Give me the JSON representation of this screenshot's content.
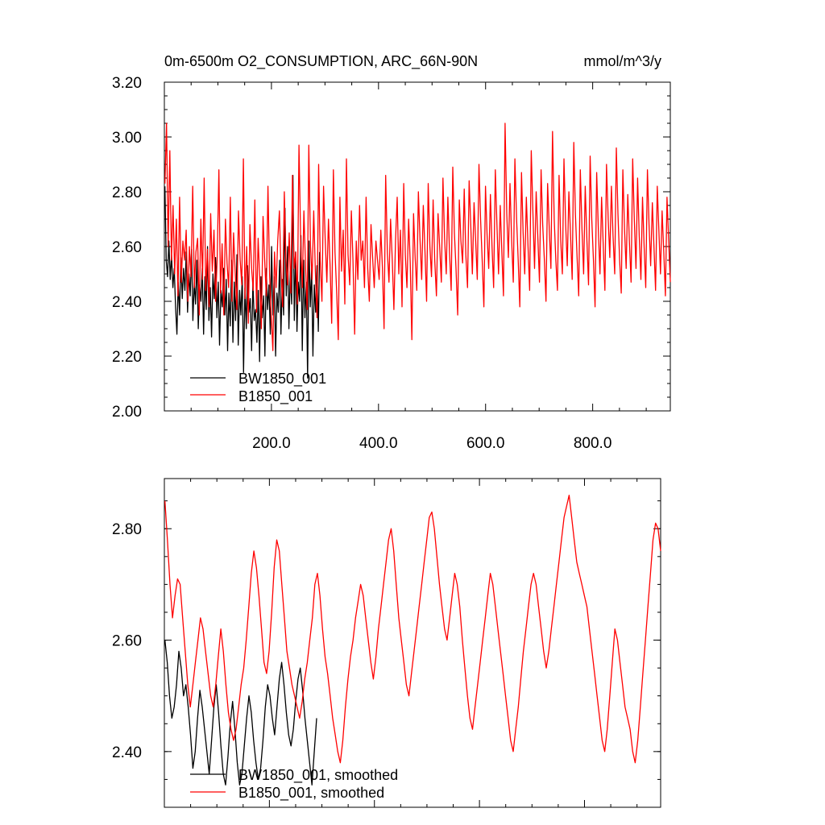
{
  "chart_data": [
    {
      "type": "line",
      "title": "0m-6500m O2_CONSUMPTION, ARC_66N-90N",
      "units": "mmol/m^3/y",
      "xlabel": "",
      "ylabel": "",
      "xlim": [
        0,
        945
      ],
      "ylim": [
        2.0,
        3.2
      ],
      "x_ticks": [
        200,
        400,
        600,
        800
      ],
      "x_tick_labels": [
        "200.0",
        "400.0",
        "600.0",
        "800.0"
      ],
      "y_ticks": [
        2.0,
        2.2,
        2.4,
        2.6,
        2.8,
        3.0,
        3.2
      ],
      "y_tick_labels": [
        "2.00",
        "2.20",
        "2.40",
        "2.60",
        "2.80",
        "3.00",
        "3.20"
      ],
      "legend_position": "bottom-left",
      "series": [
        {
          "name": "BW1850_001",
          "color": "#000000",
          "x_start": 1,
          "values": [
            2.82,
            2.55,
            2.49,
            2.62,
            2.48,
            2.57,
            2.45,
            2.52,
            2.38,
            2.28,
            2.47,
            2.35,
            2.56,
            2.41,
            2.52,
            2.44,
            2.58,
            2.36,
            2.5,
            2.42,
            2.59,
            2.33,
            2.47,
            2.39,
            2.55,
            2.3,
            2.46,
            2.4,
            2.52,
            2.28,
            2.49,
            2.37,
            2.6,
            2.33,
            2.45,
            2.27,
            2.5,
            2.41,
            2.56,
            2.34,
            2.47,
            2.24,
            2.44,
            2.38,
            2.52,
            2.35,
            2.48,
            2.22,
            2.43,
            2.31,
            2.55,
            2.25,
            2.47,
            2.33,
            2.57,
            2.24,
            2.44,
            2.35,
            2.49,
            2.14,
            2.45,
            2.3,
            2.53,
            2.36,
            2.41,
            2.22,
            2.47,
            2.33,
            2.37,
            2.25,
            2.44,
            2.18,
            2.49,
            2.34,
            2.42,
            2.2,
            2.52,
            2.37,
            2.46,
            2.28,
            2.6,
            2.35,
            2.49,
            2.2,
            2.43,
            2.36,
            2.55,
            2.28,
            2.48,
            2.35,
            2.74,
            2.42,
            2.6,
            2.3,
            2.51,
            2.39,
            2.86,
            2.33,
            2.58,
            2.29,
            2.47,
            2.4,
            2.64,
            2.22,
            2.55,
            2.34,
            2.47,
            2.12,
            2.62,
            2.38,
            2.52,
            2.2,
            2.46,
            2.36,
            2.53,
            2.29,
            2.58
          ]
        },
        {
          "name": "B1850_001",
          "color": "#ff0000",
          "x_start": 1,
          "values": [
            2.83,
            3.05,
            2.6,
            2.95,
            2.55,
            2.75,
            2.5,
            2.7,
            2.42,
            2.78,
            2.47,
            2.62,
            2.55,
            2.66,
            2.4,
            2.6,
            2.49,
            2.82,
            2.45,
            2.58,
            2.63,
            2.35,
            2.7,
            2.48,
            2.85,
            2.44,
            2.59,
            2.38,
            2.72,
            2.51,
            2.66,
            2.4,
            2.56,
            2.88,
            2.43,
            2.61,
            2.35,
            2.7,
            2.54,
            2.45,
            2.78,
            2.4,
            2.65,
            2.5,
            2.37,
            2.73,
            2.55,
            2.46,
            2.92,
            2.41,
            2.6,
            2.32,
            2.68,
            2.52,
            2.44,
            2.77,
            2.36,
            2.63,
            2.48,
            2.3,
            2.71,
            2.55,
            2.42,
            2.82,
            2.5,
            2.35,
            2.22,
            2.58,
            2.45,
            2.62,
            2.73,
            2.51,
            2.38,
            2.8,
            2.55,
            2.46,
            2.65,
            2.43,
            2.86,
            2.52,
            2.58,
            2.39,
            2.97,
            2.62,
            2.45,
            2.73,
            2.52,
            2.37,
            2.97,
            2.6,
            2.48,
            2.73,
            2.51,
            2.34,
            2.9,
            2.55,
            2.4,
            2.82,
            2.63,
            2.47,
            2.7,
            2.53,
            2.32,
            2.88,
            2.58,
            2.44,
            2.26,
            2.78,
            2.51,
            2.66,
            2.39,
            2.92,
            2.57,
            2.46,
            2.73,
            2.55,
            2.28,
            2.62,
            2.48,
            2.75,
            2.55,
            2.62,
            2.45,
            2.78,
            2.52,
            2.4,
            2.68,
            2.56,
            2.45,
            2.62,
            2.55,
            2.48,
            2.66,
            2.52,
            2.3,
            2.86,
            2.58,
            2.47,
            2.7,
            2.55,
            2.37,
            2.62,
            2.78,
            2.5,
            2.66,
            2.38,
            2.83,
            2.57,
            2.45,
            2.7,
            2.54,
            2.26,
            2.72,
            2.56,
            2.44,
            2.8,
            2.62,
            2.48,
            2.75,
            2.58,
            2.4,
            2.83,
            2.6,
            2.49,
            2.77,
            2.55,
            2.42,
            2.72,
            2.6,
            2.47,
            2.85,
            2.63,
            2.5,
            2.78,
            2.58,
            2.44,
            2.89,
            2.65,
            2.52,
            2.35,
            2.77,
            2.62,
            2.54,
            2.81,
            2.57,
            2.45,
            2.84,
            2.68,
            2.5,
            2.76,
            2.62,
            2.48,
            2.9,
            2.7,
            2.55,
            2.38,
            2.82,
            2.64,
            2.52,
            2.79,
            2.6,
            2.45,
            2.88,
            2.68,
            2.5,
            2.75,
            2.58,
            2.42,
            3.05,
            2.72,
            2.56,
            2.83,
            2.62,
            2.47,
            2.92,
            2.7,
            2.55,
            2.38,
            2.87,
            2.65,
            2.5,
            2.78,
            2.6,
            2.44,
            2.95,
            2.72,
            2.52,
            2.8,
            2.63,
            2.47,
            2.88,
            2.68,
            2.55,
            2.4,
            2.83,
            2.66,
            2.52,
            3.02,
            2.7,
            2.55,
            2.44,
            2.86,
            2.62,
            2.5,
            2.92,
            2.68,
            2.53,
            2.8,
            2.64,
            2.48,
            2.98,
            2.72,
            2.56,
            2.42,
            2.88,
            2.66,
            2.5,
            2.82,
            2.62,
            2.46,
            2.93,
            2.7,
            2.55,
            2.38,
            2.87,
            2.66,
            2.5,
            2.78,
            2.6,
            2.44,
            2.9,
            2.7,
            2.56,
            2.82,
            2.64,
            2.5,
            2.96,
            2.72,
            2.55,
            2.43,
            2.88,
            2.66,
            2.52,
            2.79,
            2.62,
            2.47,
            2.92,
            2.7,
            2.52,
            2.85,
            2.64,
            2.48,
            2.78,
            2.6,
            2.45,
            2.88,
            2.68,
            2.53,
            2.76,
            2.6,
            2.44,
            2.82,
            2.66,
            2.5,
            2.73,
            2.58,
            2.42,
            2.78,
            2.62,
            2.47
          ]
        }
      ]
    },
    {
      "type": "line",
      "title": "",
      "xlabel": "",
      "ylabel": "",
      "xlim": [
        0,
        945
      ],
      "ylim": [
        2.3,
        2.89
      ],
      "y_ticks": [
        2.4,
        2.6,
        2.8
      ],
      "y_tick_labels": [
        "2.40",
        "2.60",
        "2.80"
      ],
      "legend_position": "bottom-left",
      "series": [
        {
          "name": "BW1850_001, smoothed",
          "color": "#000000",
          "x_start": 1,
          "values": [
            2.6,
            2.56,
            2.5,
            2.46,
            2.48,
            2.52,
            2.58,
            2.55,
            2.5,
            2.52,
            2.48,
            2.43,
            2.37,
            2.4,
            2.46,
            2.51,
            2.48,
            2.44,
            2.4,
            2.36,
            2.42,
            2.48,
            2.52,
            2.47,
            2.41,
            2.36,
            2.34,
            2.39,
            2.45,
            2.49,
            2.44,
            2.38,
            2.34,
            2.36,
            2.41,
            2.46,
            2.5,
            2.47,
            2.42,
            2.38,
            2.35,
            2.37,
            2.42,
            2.48,
            2.52,
            2.5,
            2.46,
            2.43,
            2.48,
            2.53,
            2.56,
            2.52,
            2.47,
            2.43,
            2.41,
            2.44,
            2.49,
            2.53,
            2.55,
            2.51,
            2.46,
            2.42,
            2.38,
            2.34,
            2.4,
            2.46
          ]
        },
        {
          "name": "B1850_001, smoothed",
          "color": "#ff0000",
          "x_start": 1,
          "values": [
            2.85,
            2.78,
            2.7,
            2.64,
            2.68,
            2.71,
            2.7,
            2.64,
            2.58,
            2.52,
            2.48,
            2.52,
            2.56,
            2.6,
            2.64,
            2.62,
            2.58,
            2.54,
            2.5,
            2.48,
            2.52,
            2.57,
            2.62,
            2.58,
            2.52,
            2.47,
            2.44,
            2.42,
            2.44,
            2.48,
            2.52,
            2.55,
            2.6,
            2.66,
            2.72,
            2.76,
            2.73,
            2.68,
            2.62,
            2.56,
            2.54,
            2.58,
            2.65,
            2.73,
            2.78,
            2.76,
            2.7,
            2.64,
            2.58,
            2.55,
            2.52,
            2.5,
            2.48,
            2.46,
            2.49,
            2.53,
            2.56,
            2.6,
            2.64,
            2.7,
            2.72,
            2.68,
            2.62,
            2.57,
            2.54,
            2.5,
            2.46,
            2.43,
            2.4,
            2.38,
            2.42,
            2.48,
            2.53,
            2.57,
            2.6,
            2.64,
            2.67,
            2.7,
            2.68,
            2.64,
            2.6,
            2.56,
            2.53,
            2.57,
            2.62,
            2.66,
            2.7,
            2.74,
            2.78,
            2.8,
            2.76,
            2.7,
            2.64,
            2.6,
            2.56,
            2.52,
            2.5,
            2.54,
            2.58,
            2.62,
            2.66,
            2.7,
            2.74,
            2.78,
            2.82,
            2.83,
            2.8,
            2.75,
            2.7,
            2.66,
            2.62,
            2.6,
            2.64,
            2.68,
            2.72,
            2.7,
            2.66,
            2.6,
            2.55,
            2.5,
            2.46,
            2.44,
            2.48,
            2.52,
            2.56,
            2.6,
            2.64,
            2.68,
            2.72,
            2.7,
            2.66,
            2.62,
            2.58,
            2.54,
            2.5,
            2.46,
            2.42,
            2.4,
            2.44,
            2.48,
            2.53,
            2.58,
            2.62,
            2.66,
            2.7,
            2.72,
            2.7,
            2.66,
            2.62,
            2.58,
            2.55,
            2.58,
            2.62,
            2.66,
            2.7,
            2.74,
            2.78,
            2.82,
            2.84,
            2.86,
            2.82,
            2.78,
            2.74,
            2.72,
            2.7,
            2.68,
            2.66,
            2.62,
            2.58,
            2.54,
            2.5,
            2.46,
            2.42,
            2.4,
            2.44,
            2.5,
            2.56,
            2.62,
            2.6,
            2.56,
            2.52,
            2.48,
            2.46,
            2.44,
            2.4,
            2.38,
            2.42,
            2.48,
            2.54,
            2.6,
            2.66,
            2.72,
            2.78,
            2.81,
            2.8,
            2.76
          ]
        }
      ]
    }
  ]
}
